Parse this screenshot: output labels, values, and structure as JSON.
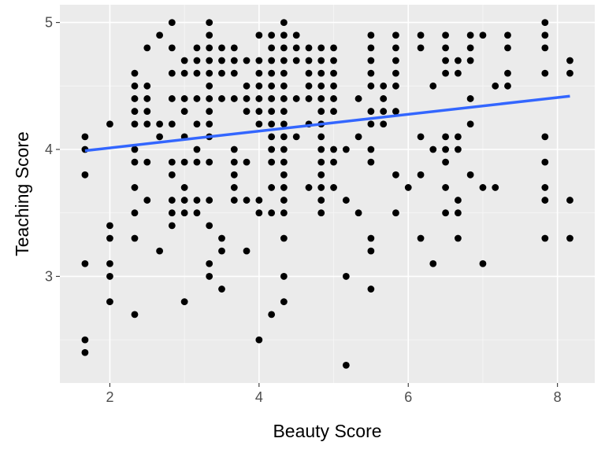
{
  "chart_data": {
    "type": "scatter",
    "title": "",
    "xlabel": "Beauty Score",
    "ylabel": "Teaching Score",
    "xlim": [
      1.33,
      8.5
    ],
    "ylim": [
      2.16,
      5.14
    ],
    "x_ticks": [
      2,
      4,
      6,
      8
    ],
    "y_ticks": [
      3,
      4,
      5
    ],
    "x_minor": [
      3,
      5,
      7
    ],
    "y_minor": [
      2.5,
      3.5,
      4.5
    ],
    "grid": true,
    "legend": "none",
    "colors": {
      "panel": "#ebebeb",
      "grid_major": "#ffffff",
      "grid_minor": "#f7f7f7",
      "point": "#000000",
      "trend": "#3366ff"
    },
    "trend_line": {
      "x": [
        1.667,
        8.167
      ],
      "y": [
        3.99,
        4.42
      ]
    },
    "points": [
      [
        1.667,
        4.1
      ],
      [
        1.667,
        4.0
      ],
      [
        1.667,
        3.8
      ],
      [
        1.667,
        3.1
      ],
      [
        1.667,
        2.5
      ],
      [
        1.667,
        2.4
      ],
      [
        2.0,
        4.2
      ],
      [
        2.0,
        3.4
      ],
      [
        2.0,
        3.3
      ],
      [
        2.0,
        3.1
      ],
      [
        2.0,
        3.0
      ],
      [
        2.0,
        2.8
      ],
      [
        2.333,
        4.6
      ],
      [
        2.333,
        4.5
      ],
      [
        2.333,
        4.4
      ],
      [
        2.333,
        4.3
      ],
      [
        2.333,
        4.2
      ],
      [
        2.333,
        4.0
      ],
      [
        2.333,
        3.9
      ],
      [
        2.333,
        3.7
      ],
      [
        2.333,
        3.5
      ],
      [
        2.333,
        3.3
      ],
      [
        2.333,
        2.7
      ],
      [
        2.5,
        4.8
      ],
      [
        2.5,
        4.5
      ],
      [
        2.5,
        4.4
      ],
      [
        2.5,
        4.3
      ],
      [
        2.5,
        4.2
      ],
      [
        2.5,
        3.9
      ],
      [
        2.5,
        3.6
      ],
      [
        2.667,
        4.9
      ],
      [
        2.667,
        4.2
      ],
      [
        2.667,
        4.1
      ],
      [
        2.667,
        3.2
      ],
      [
        2.833,
        5.0
      ],
      [
        2.833,
        4.8
      ],
      [
        2.833,
        4.6
      ],
      [
        2.833,
        4.4
      ],
      [
        2.833,
        4.2
      ],
      [
        2.833,
        3.9
      ],
      [
        2.833,
        3.8
      ],
      [
        2.833,
        3.6
      ],
      [
        2.833,
        3.5
      ],
      [
        2.833,
        3.4
      ],
      [
        3.0,
        4.7
      ],
      [
        3.0,
        4.6
      ],
      [
        3.0,
        4.4
      ],
      [
        3.0,
        4.3
      ],
      [
        3.0,
        4.1
      ],
      [
        3.0,
        3.9
      ],
      [
        3.0,
        3.7
      ],
      [
        3.0,
        3.6
      ],
      [
        3.0,
        3.5
      ],
      [
        3.0,
        2.8
      ],
      [
        3.167,
        4.8
      ],
      [
        3.167,
        4.7
      ],
      [
        3.167,
        4.6
      ],
      [
        3.167,
        4.4
      ],
      [
        3.167,
        4.2
      ],
      [
        3.167,
        4.0
      ],
      [
        3.167,
        3.9
      ],
      [
        3.167,
        3.6
      ],
      [
        3.167,
        3.5
      ],
      [
        3.333,
        5.0
      ],
      [
        3.333,
        4.9
      ],
      [
        3.333,
        4.8
      ],
      [
        3.333,
        4.7
      ],
      [
        3.333,
        4.6
      ],
      [
        3.333,
        4.5
      ],
      [
        3.333,
        4.4
      ],
      [
        3.333,
        4.3
      ],
      [
        3.333,
        4.2
      ],
      [
        3.333,
        4.1
      ],
      [
        3.333,
        3.9
      ],
      [
        3.333,
        3.6
      ],
      [
        3.333,
        3.4
      ],
      [
        3.333,
        3.1
      ],
      [
        3.333,
        3.0
      ],
      [
        3.5,
        4.8
      ],
      [
        3.5,
        4.7
      ],
      [
        3.5,
        4.6
      ],
      [
        3.5,
        4.4
      ],
      [
        3.5,
        3.3
      ],
      [
        3.5,
        3.2
      ],
      [
        3.5,
        2.9
      ],
      [
        3.667,
        4.8
      ],
      [
        3.667,
        4.7
      ],
      [
        3.667,
        4.6
      ],
      [
        3.667,
        4.4
      ],
      [
        3.667,
        4.0
      ],
      [
        3.667,
        3.9
      ],
      [
        3.667,
        3.8
      ],
      [
        3.667,
        3.7
      ],
      [
        3.667,
        3.6
      ],
      [
        3.833,
        4.7
      ],
      [
        3.833,
        4.5
      ],
      [
        3.833,
        4.4
      ],
      [
        3.833,
        4.3
      ],
      [
        3.833,
        3.9
      ],
      [
        3.833,
        3.6
      ],
      [
        3.833,
        3.2
      ],
      [
        4.0,
        4.9
      ],
      [
        4.0,
        4.7
      ],
      [
        4.0,
        4.6
      ],
      [
        4.0,
        4.5
      ],
      [
        4.0,
        4.4
      ],
      [
        4.0,
        4.3
      ],
      [
        4.0,
        4.2
      ],
      [
        4.0,
        3.6
      ],
      [
        4.0,
        3.5
      ],
      [
        4.0,
        2.5
      ],
      [
        4.167,
        4.9
      ],
      [
        4.167,
        4.8
      ],
      [
        4.167,
        4.7
      ],
      [
        4.167,
        4.6
      ],
      [
        4.167,
        4.5
      ],
      [
        4.167,
        4.4
      ],
      [
        4.167,
        4.3
      ],
      [
        4.167,
        4.2
      ],
      [
        4.167,
        4.1
      ],
      [
        4.167,
        4.0
      ],
      [
        4.167,
        3.9
      ],
      [
        4.167,
        3.7
      ],
      [
        4.167,
        3.5
      ],
      [
        4.167,
        2.7
      ],
      [
        4.333,
        5.0
      ],
      [
        4.333,
        4.9
      ],
      [
        4.333,
        4.8
      ],
      [
        4.333,
        4.7
      ],
      [
        4.333,
        4.6
      ],
      [
        4.333,
        4.5
      ],
      [
        4.333,
        4.4
      ],
      [
        4.333,
        4.3
      ],
      [
        4.333,
        4.2
      ],
      [
        4.333,
        4.1
      ],
      [
        4.333,
        4.0
      ],
      [
        4.333,
        3.9
      ],
      [
        4.333,
        3.8
      ],
      [
        4.333,
        3.7
      ],
      [
        4.333,
        3.6
      ],
      [
        4.333,
        3.5
      ],
      [
        4.333,
        3.3
      ],
      [
        4.333,
        3.0
      ],
      [
        4.333,
        2.8
      ],
      [
        4.5,
        4.9
      ],
      [
        4.5,
        4.8
      ],
      [
        4.5,
        4.7
      ],
      [
        4.5,
        4.4
      ],
      [
        4.5,
        4.1
      ],
      [
        4.667,
        4.8
      ],
      [
        4.667,
        4.7
      ],
      [
        4.667,
        4.6
      ],
      [
        4.667,
        4.5
      ],
      [
        4.667,
        4.4
      ],
      [
        4.667,
        4.2
      ],
      [
        4.667,
        3.7
      ],
      [
        4.833,
        4.8
      ],
      [
        4.833,
        4.7
      ],
      [
        4.833,
        4.6
      ],
      [
        4.833,
        4.5
      ],
      [
        4.833,
        4.4
      ],
      [
        4.833,
        4.3
      ],
      [
        4.833,
        4.2
      ],
      [
        4.833,
        4.1
      ],
      [
        4.833,
        4.0
      ],
      [
        4.833,
        3.9
      ],
      [
        4.833,
        3.8
      ],
      [
        4.833,
        3.7
      ],
      [
        4.833,
        3.6
      ],
      [
        4.833,
        3.5
      ],
      [
        5.0,
        4.8
      ],
      [
        5.0,
        4.7
      ],
      [
        5.0,
        4.6
      ],
      [
        5.0,
        4.5
      ],
      [
        5.0,
        4.4
      ],
      [
        5.0,
        4.3
      ],
      [
        5.0,
        4.0
      ],
      [
        5.0,
        3.9
      ],
      [
        5.0,
        3.7
      ],
      [
        5.167,
        4.0
      ],
      [
        5.167,
        3.6
      ],
      [
        5.167,
        3.0
      ],
      [
        5.167,
        2.3
      ],
      [
        5.333,
        4.4
      ],
      [
        5.333,
        4.1
      ],
      [
        5.333,
        3.5
      ],
      [
        5.5,
        4.9
      ],
      [
        5.5,
        4.8
      ],
      [
        5.5,
        4.7
      ],
      [
        5.5,
        4.6
      ],
      [
        5.5,
        4.5
      ],
      [
        5.5,
        4.3
      ],
      [
        5.5,
        4.2
      ],
      [
        5.5,
        4.0
      ],
      [
        5.5,
        3.9
      ],
      [
        5.5,
        3.3
      ],
      [
        5.5,
        3.2
      ],
      [
        5.5,
        2.9
      ],
      [
        5.667,
        4.5
      ],
      [
        5.667,
        4.4
      ],
      [
        5.667,
        4.3
      ],
      [
        5.667,
        4.2
      ],
      [
        5.833,
        4.9
      ],
      [
        5.833,
        4.8
      ],
      [
        5.833,
        4.7
      ],
      [
        5.833,
        4.6
      ],
      [
        5.833,
        4.5
      ],
      [
        5.833,
        4.3
      ],
      [
        5.833,
        3.8
      ],
      [
        5.833,
        3.5
      ],
      [
        6.0,
        3.7
      ],
      [
        6.167,
        4.9
      ],
      [
        6.167,
        4.8
      ],
      [
        6.167,
        4.1
      ],
      [
        6.167,
        3.8
      ],
      [
        6.167,
        3.3
      ],
      [
        6.333,
        4.5
      ],
      [
        6.333,
        4.0
      ],
      [
        6.333,
        3.1
      ],
      [
        6.5,
        4.9
      ],
      [
        6.5,
        4.8
      ],
      [
        6.5,
        4.7
      ],
      [
        6.5,
        4.6
      ],
      [
        6.5,
        4.1
      ],
      [
        6.5,
        4.0
      ],
      [
        6.5,
        3.9
      ],
      [
        6.5,
        3.7
      ],
      [
        6.5,
        3.5
      ],
      [
        6.667,
        4.7
      ],
      [
        6.667,
        4.6
      ],
      [
        6.667,
        4.1
      ],
      [
        6.667,
        4.0
      ],
      [
        6.667,
        3.6
      ],
      [
        6.667,
        3.5
      ],
      [
        6.667,
        3.3
      ],
      [
        6.833,
        4.9
      ],
      [
        6.833,
        4.8
      ],
      [
        6.833,
        4.7
      ],
      [
        6.833,
        4.4
      ],
      [
        6.833,
        4.2
      ],
      [
        6.833,
        3.8
      ],
      [
        7.0,
        4.9
      ],
      [
        7.0,
        3.7
      ],
      [
        7.0,
        3.1
      ],
      [
        7.167,
        4.5
      ],
      [
        7.167,
        3.7
      ],
      [
        7.333,
        4.9
      ],
      [
        7.333,
        4.8
      ],
      [
        7.333,
        4.6
      ],
      [
        7.333,
        4.5
      ],
      [
        7.833,
        5.0
      ],
      [
        7.833,
        4.9
      ],
      [
        7.833,
        4.8
      ],
      [
        7.833,
        4.6
      ],
      [
        7.833,
        4.1
      ],
      [
        7.833,
        3.9
      ],
      [
        7.833,
        3.7
      ],
      [
        7.833,
        3.6
      ],
      [
        7.833,
        3.3
      ],
      [
        8.167,
        4.7
      ],
      [
        8.167,
        4.6
      ],
      [
        8.167,
        3.6
      ],
      [
        8.167,
        3.3
      ]
    ]
  }
}
